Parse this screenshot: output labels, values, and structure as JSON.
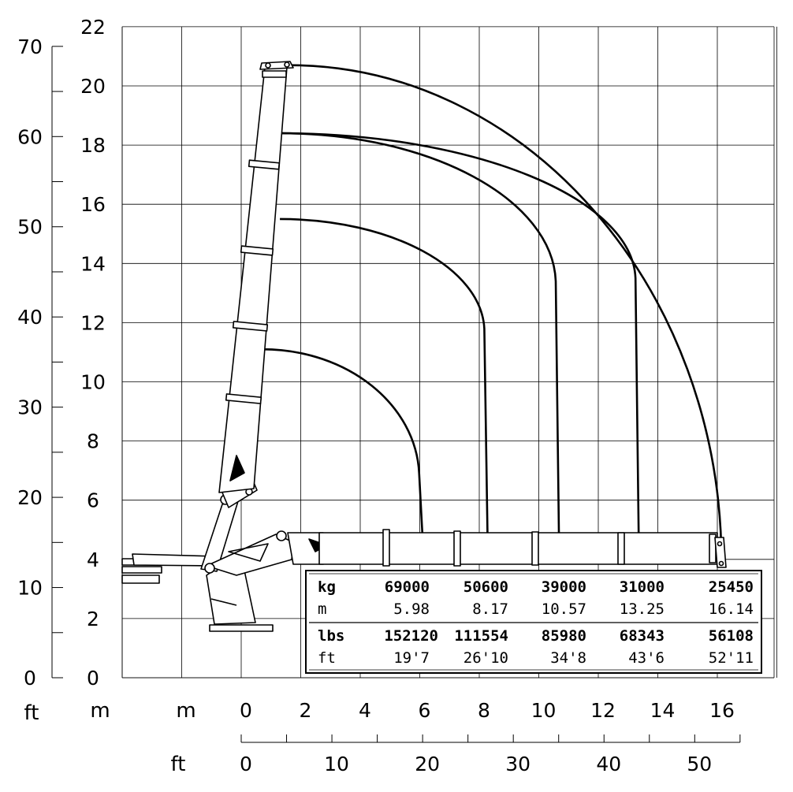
{
  "chart_data": {
    "type": "load-chart",
    "y_axis_m": {
      "ticks": [
        "0",
        "2",
        "4",
        "6",
        "8",
        "10",
        "12",
        "14",
        "16",
        "18",
        "20",
        "22"
      ],
      "range": [
        0,
        22
      ]
    },
    "y_axis_ft": {
      "ticks": [
        "0",
        "10",
        "20",
        "30",
        "40",
        "50",
        "60",
        "70"
      ]
    },
    "x_axis_m": {
      "unit": "m",
      "ticks": [
        "0",
        "2",
        "4",
        "6",
        "8",
        "10",
        "12",
        "14",
        "16"
      ]
    },
    "x_axis_ft": {
      "unit": "ft",
      "ticks": [
        "0",
        "10",
        "20",
        "30",
        "40",
        "50"
      ]
    },
    "left_unit_ft": "ft",
    "left_unit_m": "m",
    "reach_envelopes": [
      {
        "tip": [
          0.7,
          11.1
        ],
        "end_radius": 5.98,
        "end_height": 6.9
      },
      {
        "tip": [
          1.3,
          15.5
        ],
        "end_radius": 8.17,
        "end_height": 11.8
      },
      {
        "tip": [
          1.3,
          18.4
        ],
        "end_radius": 10.57,
        "end_height": 13.4
      },
      {
        "tip": [
          1.3,
          18.4
        ],
        "end_radius": 13.25,
        "end_height": 13.5
      },
      {
        "tip": [
          1.6,
          20.7
        ],
        "end_radius": 16.14,
        "end_height": 3.9
      }
    ],
    "table": {
      "kg": {
        "label": "kg",
        "values": [
          "69000",
          "50600",
          "39000",
          "31000",
          "25450"
        ]
      },
      "m": {
        "label": "m",
        "values": [
          "5.98",
          "8.17",
          "10.57",
          "13.25",
          "16.14"
        ]
      },
      "lbs": {
        "label": "lbs",
        "values": [
          "152120",
          "111554",
          "85980",
          "68343",
          "56108"
        ]
      },
      "ft": {
        "label": "ft",
        "values": [
          "19'7",
          "26'10",
          "34'8",
          "43'6",
          "52'11"
        ]
      }
    }
  }
}
